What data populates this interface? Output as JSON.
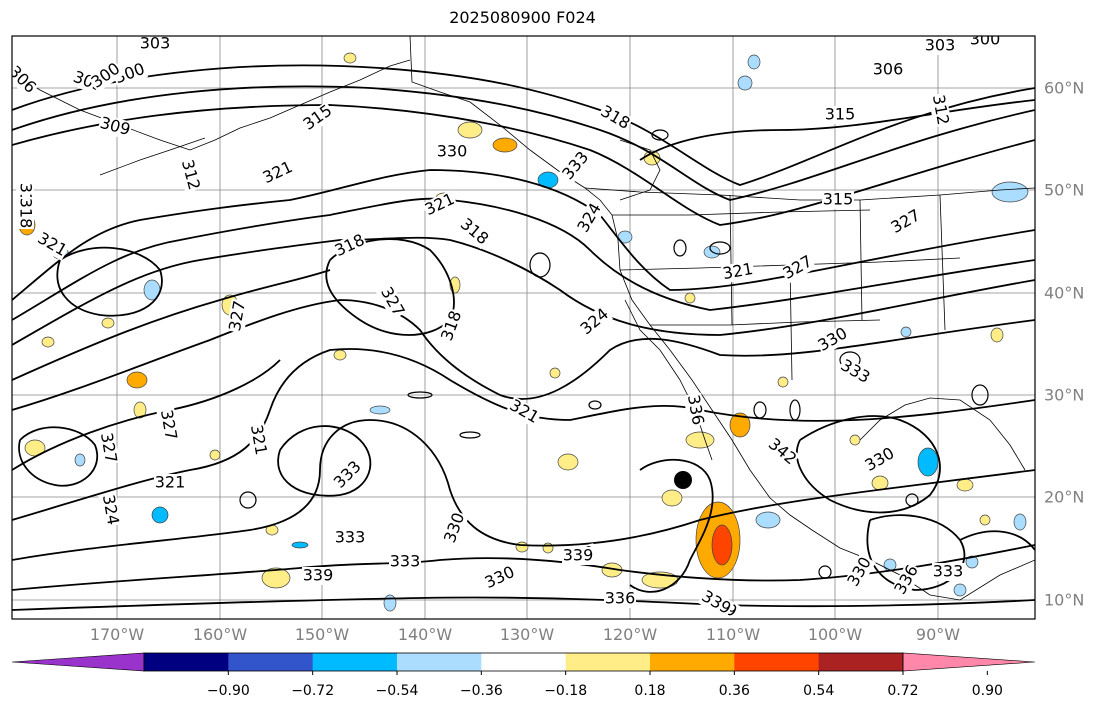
{
  "title": "2025080900 F024",
  "longitude_labels": [
    "170°W",
    "160°W",
    "150°W",
    "140°W",
    "130°W",
    "120°W",
    "110°W",
    "100°W",
    "90°W"
  ],
  "latitude_labels": [
    "60°N",
    "50°N",
    "40°N",
    "30°N",
    "20°N",
    "10°N"
  ],
  "contour_labels": [
    {
      "text": "303"
    },
    {
      "text": "300"
    },
    {
      "text": "306"
    },
    {
      "text": "303"
    },
    {
      "text": "300"
    },
    {
      "text": "309"
    },
    {
      "text": "312"
    },
    {
      "text": "315"
    },
    {
      "text": "321"
    },
    {
      "text": "330"
    },
    {
      "text": "318"
    },
    {
      "text": "333"
    },
    {
      "text": "321"
    },
    {
      "text": "318"
    },
    {
      "text": "318"
    },
    {
      "text": "327"
    },
    {
      "text": "318"
    },
    {
      "text": "327"
    },
    {
      "text": "324"
    },
    {
      "text": "321"
    },
    {
      "text": "321"
    },
    {
      "text": "333"
    },
    {
      "text": "330"
    },
    {
      "text": "333"
    },
    {
      "text": "330"
    },
    {
      "text": "339"
    },
    {
      "text": "336"
    },
    {
      "text": "342"
    },
    {
      "text": "339"
    },
    {
      "text": "339"
    },
    {
      "text": "330"
    },
    {
      "text": "333"
    },
    {
      "text": "336"
    },
    {
      "text": "315"
    },
    {
      "text": "321"
    },
    {
      "text": "327"
    },
    {
      "text": "324"
    },
    {
      "text": "321"
    },
    {
      "text": "327"
    },
    {
      "text": "333"
    },
    {
      "text": "303"
    },
    {
      "text": "300"
    },
    {
      "text": "306"
    },
    {
      "text": "312"
    },
    {
      "text": "327"
    },
    {
      "text": "321"
    },
    {
      "text": "324"
    },
    {
      "text": "327"
    },
    {
      "text": "330"
    },
    {
      "text": "336"
    },
    {
      "text": "339"
    },
    {
      "text": "336"
    },
    {
      "text": "333"
    },
    {
      "text": "330"
    },
    {
      "text": "339"
    },
    {
      "text": "312"
    },
    {
      "text": "318"
    },
    {
      "text": "315"
    }
  ],
  "colorbar": {
    "colors": [
      "#9933cc",
      "#000080",
      "#3355cc",
      "#00bbff",
      "#aaddff",
      "#ffffff",
      "#ffee88",
      "#ffaa00",
      "#ff4400",
      "#aa2222",
      "#ff88aa"
    ],
    "tick_labels": [
      "−0.90",
      "−0.72",
      "−0.54",
      "−0.36",
      "−0.18",
      "0.18",
      "0.36",
      "0.54",
      "0.72",
      "0.90"
    ]
  },
  "marker": {
    "name": "storm-center",
    "color": "#000000"
  }
}
